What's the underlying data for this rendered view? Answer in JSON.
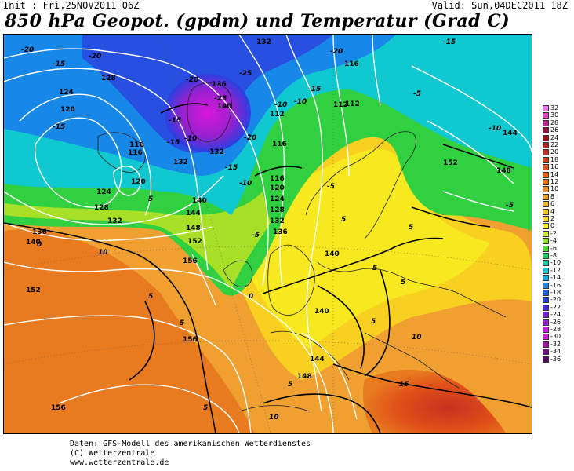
{
  "header": {
    "init": "Init : Fri,25NOV2011 06Z",
    "valid": "Valid: Sun,04DEC2011 18Z",
    "title": "850 hPa Geopot. (gpdm) und Temperatur (Grad C)"
  },
  "legend": {
    "items": [
      {
        "label": "32",
        "color": "#f06ef0"
      },
      {
        "label": "30",
        "color": "#e040c0"
      },
      {
        "label": "28",
        "color": "#c02090"
      },
      {
        "label": "26",
        "color": "#901040"
      },
      {
        "label": "24",
        "color": "#a01020"
      },
      {
        "label": "22",
        "color": "#b82020"
      },
      {
        "label": "20",
        "color": "#c83020"
      },
      {
        "label": "18",
        "color": "#d84018"
      },
      {
        "label": "16",
        "color": "#e05018"
      },
      {
        "label": "14",
        "color": "#e86010"
      },
      {
        "label": "12",
        "color": "#f07810"
      },
      {
        "label": "10",
        "color": "#f08c18"
      },
      {
        "label": "8",
        "color": "#f0a020"
      },
      {
        "label": "6",
        "color": "#f4b420"
      },
      {
        "label": "4",
        "color": "#f8c820"
      },
      {
        "label": "2",
        "color": "#f8dc18"
      },
      {
        "label": "0",
        "color": "#f8f010"
      },
      {
        "label": "-2",
        "color": "#c8f020"
      },
      {
        "label": "-4",
        "color": "#90e828"
      },
      {
        "label": "-6",
        "color": "#50d838"
      },
      {
        "label": "-8",
        "color": "#20d060"
      },
      {
        "label": "-10",
        "color": "#10d0a0"
      },
      {
        "label": "-12",
        "color": "#10c8d0"
      },
      {
        "label": "-14",
        "color": "#10a8e0"
      },
      {
        "label": "-16",
        "color": "#1888e8"
      },
      {
        "label": "-18",
        "color": "#2060e8"
      },
      {
        "label": "-20",
        "color": "#2840e0"
      },
      {
        "label": "-22",
        "color": "#4828d8"
      },
      {
        "label": "-24",
        "color": "#7020d0"
      },
      {
        "label": "-26",
        "color": "#9820d0"
      },
      {
        "label": "-28",
        "color": "#c020d8"
      },
      {
        "label": "-30",
        "color": "#d818d8"
      },
      {
        "label": "-32",
        "color": "#a010a8"
      },
      {
        "label": "-34",
        "color": "#701080"
      },
      {
        "label": "-36",
        "color": "#500860"
      }
    ]
  },
  "contour_labels": {
    "geopotential": [
      "132",
      "116",
      "128",
      "124",
      "120",
      "116",
      "112",
      "116",
      "136",
      "140",
      "132",
      "132",
      "112",
      "116",
      "120",
      "124",
      "128",
      "132",
      "136",
      "124",
      "120",
      "128",
      "132",
      "136",
      "140",
      "144",
      "148",
      "152",
      "140",
      "140",
      "140",
      "144",
      "148",
      "152",
      "156",
      "156",
      "156",
      "152",
      "148",
      "144",
      "112",
      "116",
      "152",
      "148",
      "144",
      "136",
      "140"
    ],
    "temperature": [
      "-20",
      "-15",
      "-20",
      "-15",
      "-20",
      "-25",
      "-25",
      "-20",
      "-15",
      "-15",
      "-10",
      "-10",
      "-10",
      "-15",
      "-20",
      "-15",
      "-5",
      "-10",
      "-15",
      "-10",
      "-5",
      "-5",
      "-5",
      "0",
      "5",
      "0",
      "5",
      "5",
      "5",
      "5",
      "5",
      "5",
      "5",
      "5",
      "5",
      "10",
      "10",
      "15",
      "10",
      "-5",
      "-10",
      "-5",
      "-5",
      "0",
      "5"
    ]
  },
  "footer": {
    "line1": "Daten: GFS-Modell des amerikanischen Wetterdienstes",
    "line2": "(C) Wetterzentrale",
    "line3": "www.wetterzentrale.de"
  },
  "colors": {
    "warm_orange": "#f0a030",
    "deep_orange": "#e87a20",
    "yellow": "#f8d820",
    "green": "#30d040",
    "cyan": "#10c8d0",
    "blue": "#2060e8",
    "purple": "#9820d0",
    "magenta": "#d818d8",
    "contour_white": "#ffffff",
    "isotherm_black": "#000000"
  }
}
